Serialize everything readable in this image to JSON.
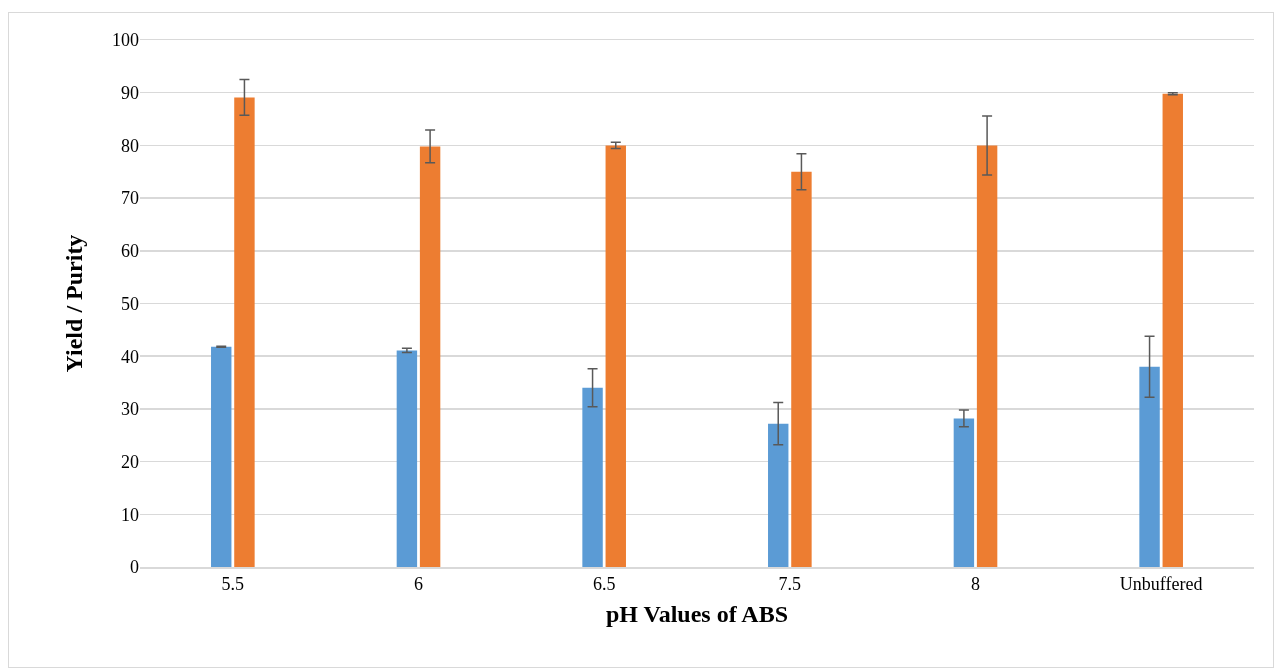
{
  "chart_data": {
    "type": "bar",
    "xlabel": "pH Values of ABS",
    "ylabel": "Yield / Purity",
    "categories": [
      "5.5",
      "6",
      "6.5",
      "7.5",
      "8",
      "Unbuffered"
    ],
    "series": [
      {
        "color": "#5b9bd5",
        "values": [
          41.8,
          41.1,
          34,
          27.2,
          28.2,
          38
        ],
        "errors": [
          0.1,
          0.4,
          3.6,
          4,
          1.6,
          5.8
        ]
      },
      {
        "color": "#ed7d31",
        "values": [
          89.1,
          79.8,
          80,
          75,
          80,
          89.8
        ],
        "errors": [
          3.4,
          3.1,
          0.6,
          3.4,
          5.6,
          0.2
        ]
      }
    ],
    "ylim": [
      0,
      100
    ],
    "yticks": [
      0,
      10,
      20,
      30,
      40,
      50,
      60,
      70,
      80,
      90,
      100
    ],
    "grid": "y"
  }
}
